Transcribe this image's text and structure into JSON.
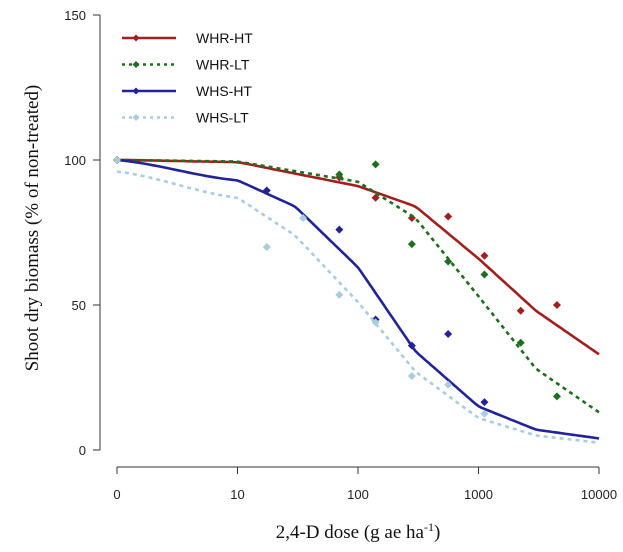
{
  "chart_data": {
    "type": "line",
    "xlabel_main": "2,4-D dose (g ae ha",
    "xlabel_sup": "-1",
    "xlabel_end": ")",
    "ylabel": "Shoot dry biomass (% of non-treated)",
    "xscale": "log (with 0 shown at left)",
    "xticks": [
      "0",
      "10",
      "100",
      "1000",
      "10000"
    ],
    "yticks": [
      "0",
      "50",
      "100",
      "150"
    ],
    "ylim": [
      0,
      150
    ],
    "legend_position": "top-left",
    "grid": false,
    "series": [
      {
        "name": "WHR-HT",
        "color": "#a0201e",
        "dash": "solid",
        "points": [
          [
            0,
            100
          ],
          [
            70,
            94
          ],
          [
            140,
            87
          ],
          [
            280,
            80
          ],
          [
            560,
            80.5
          ],
          [
            1120,
            67
          ],
          [
            2240,
            48
          ],
          [
            4480,
            50
          ]
        ],
        "curve": [
          [
            0,
            100
          ],
          [
            10,
            99.3
          ],
          [
            100,
            91
          ],
          [
            300,
            84
          ],
          [
            1000,
            66
          ],
          [
            3000,
            48
          ],
          [
            10000,
            33
          ]
        ]
      },
      {
        "name": "WHR-LT",
        "color": "#1e6e1e",
        "dash": "dotted",
        "points": [
          [
            0,
            100
          ],
          [
            70,
            95
          ],
          [
            140,
            98.5
          ],
          [
            280,
            71
          ],
          [
            560,
            65
          ],
          [
            1120,
            60.5
          ],
          [
            2240,
            37
          ],
          [
            4480,
            18.5
          ]
        ],
        "curve": [
          [
            0,
            100
          ],
          [
            10,
            99.5
          ],
          [
            100,
            92.5
          ],
          [
            300,
            80
          ],
          [
            1000,
            53
          ],
          [
            3000,
            28
          ],
          [
            10000,
            13
          ]
        ]
      },
      {
        "name": "WHS-HT",
        "color": "#22229a",
        "dash": "solid",
        "points": [
          [
            0,
            100
          ],
          [
            17.5,
            89.5
          ],
          [
            70,
            76
          ],
          [
            140,
            45
          ],
          [
            280,
            36
          ],
          [
            560,
            40
          ],
          [
            1120,
            16.5
          ]
        ],
        "curve": [
          [
            0,
            100
          ],
          [
            10,
            93
          ],
          [
            30,
            84
          ],
          [
            100,
            63
          ],
          [
            300,
            34
          ],
          [
            1000,
            15
          ],
          [
            3000,
            7
          ],
          [
            10000,
            4
          ]
        ]
      },
      {
        "name": "WHS-LT",
        "color": "#a8cde0",
        "dash": "dotted",
        "points": [
          [
            0,
            100
          ],
          [
            17.5,
            70
          ],
          [
            35,
            80
          ],
          [
            70,
            53.5
          ],
          [
            140,
            44
          ],
          [
            280,
            25.5
          ],
          [
            560,
            22.5
          ],
          [
            1120,
            12.5
          ]
        ],
        "curve": [
          [
            0,
            96
          ],
          [
            10,
            87
          ],
          [
            30,
            74
          ],
          [
            100,
            51
          ],
          [
            300,
            27
          ],
          [
            1000,
            11
          ],
          [
            3000,
            5
          ],
          [
            10000,
            2.5
          ]
        ]
      }
    ]
  }
}
